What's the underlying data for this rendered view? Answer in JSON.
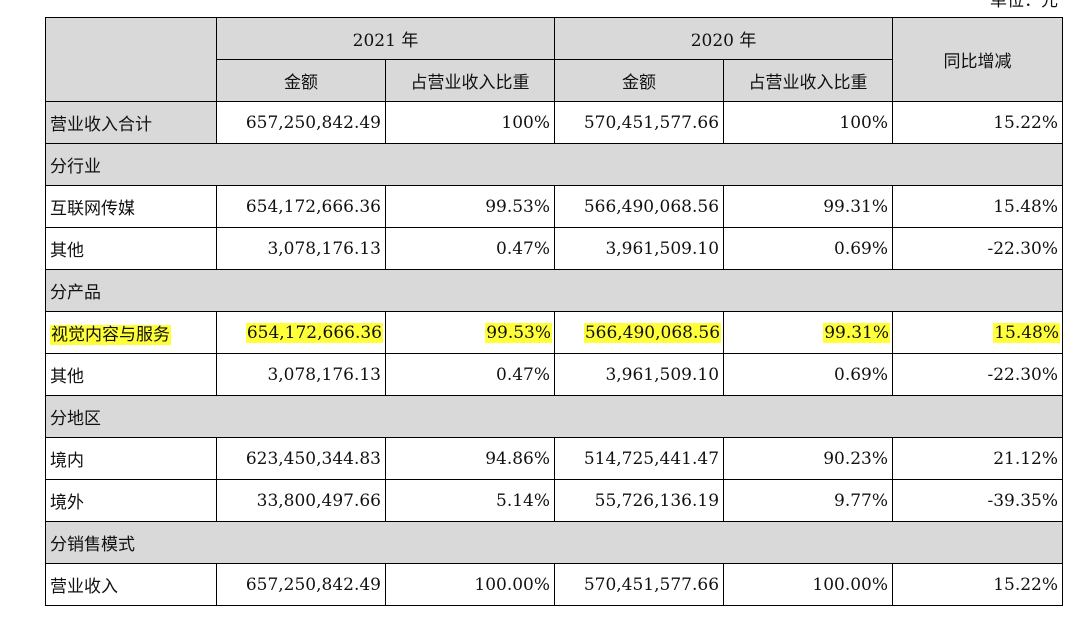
{
  "unit_label": "单位：元",
  "header": {
    "year_2021": "2021 年",
    "year_2020": "2020 年",
    "amount": "金额",
    "ratio": "占营业收入比重",
    "yoy": "同比增减"
  },
  "rows": [
    {
      "type": "data",
      "label": "营业收入合计",
      "a21": "657,250,842.49",
      "r21": "100%",
      "a20": "570,451,577.66",
      "r20": "100%",
      "yoy": "15.22%",
      "highlight": false
    },
    {
      "type": "section",
      "label": "分行业"
    },
    {
      "type": "data",
      "label": "互联网传媒",
      "a21": "654,172,666.36",
      "r21": "99.53%",
      "a20": "566,490,068.56",
      "r20": "99.31%",
      "yoy": "15.48%",
      "highlight": false
    },
    {
      "type": "data",
      "label": "其他",
      "a21": "3,078,176.13",
      "r21": "0.47%",
      "a20": "3,961,509.10",
      "r20": "0.69%",
      "yoy": "-22.30%",
      "highlight": false
    },
    {
      "type": "section",
      "label": "分产品"
    },
    {
      "type": "data",
      "label": "视觉内容与服务",
      "a21": "654,172,666.36",
      "r21": "99.53%",
      "a20": "566,490,068.56",
      "r20": "99.31%",
      "yoy": "15.48%",
      "highlight": true
    },
    {
      "type": "data",
      "label": "其他",
      "a21": "3,078,176.13",
      "r21": "0.47%",
      "a20": "3,961,509.10",
      "r20": "0.69%",
      "yoy": "-22.30%",
      "highlight": false
    },
    {
      "type": "section",
      "label": "分地区"
    },
    {
      "type": "data",
      "label": "境内",
      "a21": "623,450,344.83",
      "r21": "94.86%",
      "a20": "514,725,441.47",
      "r20": "90.23%",
      "yoy": "21.12%",
      "highlight": false
    },
    {
      "type": "data",
      "label": "境外",
      "a21": "33,800,497.66",
      "r21": "5.14%",
      "a20": "55,726,136.19",
      "r20": "9.77%",
      "yoy": "-39.35%",
      "highlight": false
    },
    {
      "type": "section",
      "label": "分销售模式"
    },
    {
      "type": "data",
      "label": "营业收入",
      "a21": "657,250,842.49",
      "r21": "100.00%",
      "a20": "570,451,577.66",
      "r20": "100.00%",
      "yoy": "15.22%",
      "highlight": false
    }
  ],
  "colors": {
    "header_bg": "#d9d9d9",
    "highlight": "#ffff3a",
    "border": "#000000"
  }
}
